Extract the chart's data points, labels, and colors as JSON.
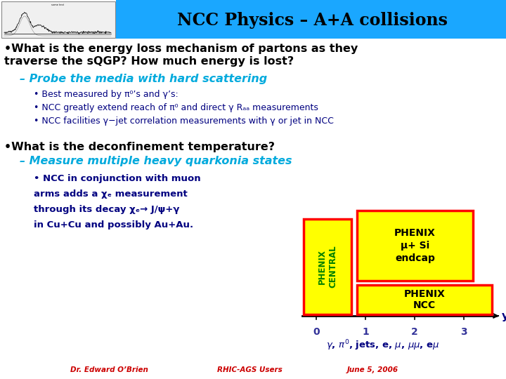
{
  "title": "NCC Physics – A+A collisions",
  "title_bg": "#1aa7ff",
  "title_color": "#000000",
  "bg_color": "#ffffff",
  "sub1": "– Probe the media with hard scattering",
  "sub1_color": "#00aadd",
  "bullets_blue": [
    "Best measured by π⁰’s and γ’s:",
    "NCC greatly extend reach of π⁰ and direct γ Rₐₐ measurements",
    "NCC facilities γ−jet correlation measurements with γ or jet in NCC"
  ],
  "bullet2": "•What is the deconfinement temperature?",
  "sub2": "– Measure multiple heavy quarkonia states",
  "sub2_color": "#00aadd",
  "bullet3_lines": [
    "• NCC in conjunction with muon",
    "arms adds a χₑ measurement",
    "through its decay χₑ→ J/ψ+γ",
    "in Cu+Cu and possibly Au+Au."
  ],
  "footer_left": "Dr. Edward O’Brien",
  "footer_mid": "RHIC-AGS Users",
  "footer_right": "June 5, 2006",
  "footer_color": "#cc0000"
}
